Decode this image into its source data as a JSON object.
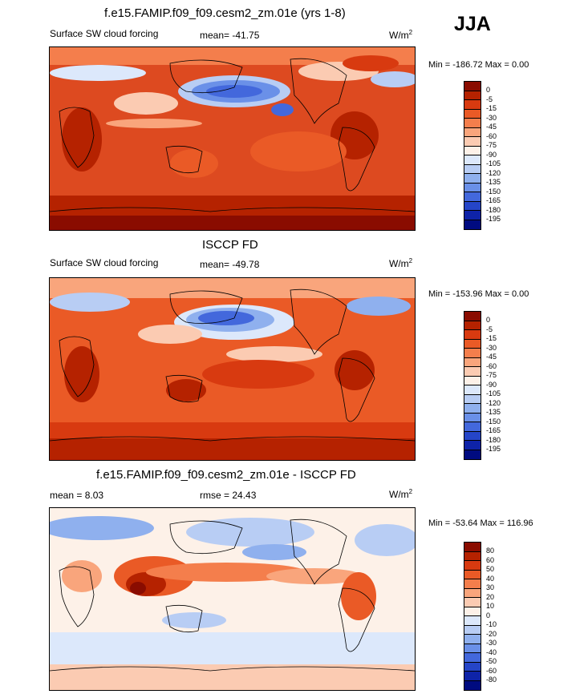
{
  "season": "JJA",
  "panels": [
    {
      "title": "f.e15.FAMIP.f09_f09.cesm2_zm.01e (yrs 1-8)",
      "left_label": "Surface SW cloud forcing",
      "stat_label": "mean= -41.75",
      "units_label": "W/m",
      "units_sup": "2",
      "minmax": "Min = -186.72 Max =   0.00",
      "colorbar": {
        "ticks": [
          "0",
          "-5",
          "-15",
          "-30",
          "-45",
          "-60",
          "-75",
          "-90",
          "-105",
          "-120",
          "-135",
          "-150",
          "-165",
          "-180",
          "-195"
        ],
        "colors": [
          "#8a0c00",
          "#b52200",
          "#d83a10",
          "#ea5a26",
          "#f47e4c",
          "#f9a57c",
          "#fbcbb2",
          "#fdf1e8",
          "#dce8fb",
          "#b8cdf4",
          "#8fb0ee",
          "#6a90e8",
          "#4368dc",
          "#2545c8",
          "#0e23a8",
          "#000b80"
        ]
      }
    },
    {
      "title": "ISCCP FD",
      "left_label": "Surface SW cloud forcing",
      "stat_label": "mean= -49.78",
      "units_label": "W/m",
      "units_sup": "2",
      "minmax": "Min = -153.96 Max =   0.00",
      "colorbar": {
        "ticks": [
          "0",
          "-5",
          "-15",
          "-30",
          "-45",
          "-60",
          "-75",
          "-90",
          "-105",
          "-120",
          "-135",
          "-150",
          "-165",
          "-180",
          "-195"
        ],
        "colors": [
          "#8a0c00",
          "#b52200",
          "#d83a10",
          "#ea5a26",
          "#f47e4c",
          "#f9a57c",
          "#fbcbb2",
          "#fdf1e8",
          "#dce8fb",
          "#b8cdf4",
          "#8fb0ee",
          "#6a90e8",
          "#4368dc",
          "#2545c8",
          "#0e23a8",
          "#000b80"
        ]
      }
    },
    {
      "title": "f.e15.FAMIP.f09_f09.cesm2_zm.01e - ISCCP FD",
      "left_label": "mean =   8.03",
      "stat_label": "rmse =  24.43",
      "units_label": "W/m",
      "units_sup": "2",
      "minmax": "Min = -53.64 Max = 116.96",
      "colorbar": {
        "ticks": [
          "80",
          "60",
          "50",
          "40",
          "30",
          "20",
          "10",
          "0",
          "-10",
          "-20",
          "-30",
          "-40",
          "-50",
          "-60",
          "-80"
        ],
        "colors": [
          "#8a0c00",
          "#b52200",
          "#d83a10",
          "#ea5a26",
          "#f47e4c",
          "#f9a57c",
          "#fbcbb2",
          "#fdf1e8",
          "#dce8fb",
          "#b8cdf4",
          "#8fb0ee",
          "#6a90e8",
          "#4368dc",
          "#2545c8",
          "#0e23a8",
          "#000b80"
        ]
      }
    }
  ]
}
